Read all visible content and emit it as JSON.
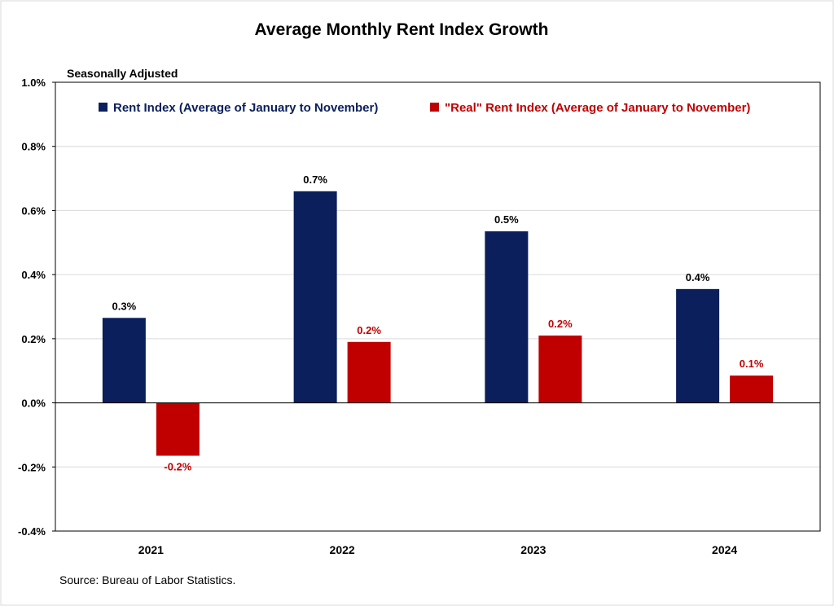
{
  "chart_data": {
    "type": "bar",
    "title": "Average Monthly Rent Index Growth",
    "subtitle": "Seasonally Adjusted",
    "source": "Source: Bureau of Labor Statistics.",
    "categories": [
      "2021",
      "2022",
      "2023",
      "2024"
    ],
    "ylim": [
      -0.4,
      1.0
    ],
    "yticks": [
      -0.4,
      -0.2,
      0.0,
      0.2,
      0.4,
      0.6,
      0.8,
      1.0
    ],
    "ytick_labels": [
      "-0.4%",
      "-0.2%",
      "0.0%",
      "0.2%",
      "0.4%",
      "0.6%",
      "0.8%",
      "1.0%"
    ],
    "grid": true,
    "legend_position": "top",
    "series": [
      {
        "name": "Rent Index (Average of January to November)",
        "color": "#0a1f5c",
        "values": [
          0.265,
          0.66,
          0.535,
          0.355
        ],
        "data_labels": [
          "0.3%",
          "0.7%",
          "0.5%",
          "0.4%"
        ]
      },
      {
        "name": "\"Real\" Rent Index (Average of January to November)",
        "color": "#c00000",
        "values": [
          -0.165,
          0.19,
          0.21,
          0.085
        ],
        "data_labels": [
          "-0.2%",
          "0.2%",
          "0.2%",
          "0.1%"
        ]
      }
    ]
  }
}
